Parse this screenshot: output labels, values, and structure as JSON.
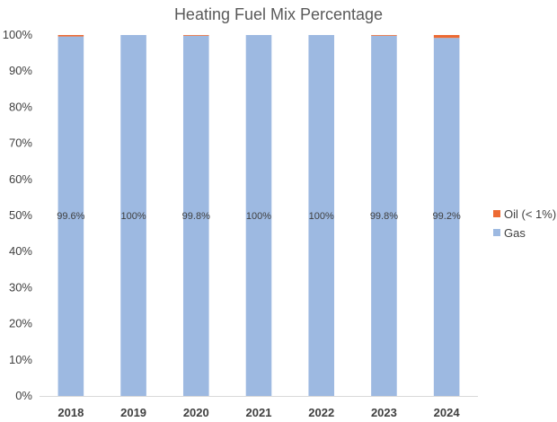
{
  "chart_data": {
    "type": "bar",
    "stacked": true,
    "title": "Heating Fuel Mix Percentage",
    "xlabel": "",
    "ylabel": "",
    "ylim": [
      0,
      100
    ],
    "y_ticks": [
      "0%",
      "10%",
      "20%",
      "30%",
      "40%",
      "50%",
      "60%",
      "70%",
      "80%",
      "90%",
      "100%"
    ],
    "categories": [
      "2018",
      "2019",
      "2020",
      "2021",
      "2022",
      "2023",
      "2024"
    ],
    "series": [
      {
        "name": "Gas",
        "color": "#9DB9E1",
        "values": [
          99.6,
          100,
          99.8,
          100,
          100,
          99.8,
          99.2
        ],
        "data_labels": [
          "99.6%",
          "100%",
          "99.8%",
          "100%",
          "100%",
          "99.8%",
          "99.2%"
        ]
      },
      {
        "name": "Oil (< 1%)",
        "color": "#ED6A33",
        "values": [
          0.4,
          0,
          0.2,
          0,
          0,
          0.2,
          0.8
        ]
      }
    ],
    "legend_position": "right",
    "grid": false
  }
}
